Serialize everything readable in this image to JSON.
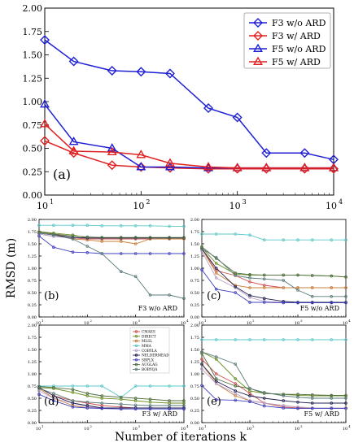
{
  "figure": {
    "ylabel": "RMSD (m)",
    "xlabel": "Number of iterations k"
  },
  "chart_data": [
    {
      "type": "line",
      "panel_label": "(a)",
      "xscale": "log",
      "xlim": [
        10,
        10000
      ],
      "ylim": [
        0,
        2.0
      ],
      "xticks": [
        10,
        100,
        1000,
        10000
      ],
      "xtick_labels": [
        "10",
        "10",
        "10",
        "10"
      ],
      "xtick_exponents": [
        "1",
        "2",
        "3",
        "4"
      ],
      "yticks": [
        "0.00",
        "0.25",
        "0.50",
        "0.75",
        "1.00",
        "1.25",
        "1.50",
        "1.75",
        "2.00"
      ],
      "legend_position": "top-right",
      "series": [
        {
          "name": "F3 w/o ARD",
          "color": "#1f1fd6",
          "marker": "diamond",
          "x": [
            10,
            20,
            50,
            100,
            200,
            500,
            1000,
            2000,
            5000,
            10000
          ],
          "y": [
            1.66,
            1.43,
            1.33,
            1.32,
            1.3,
            0.93,
            0.83,
            0.45,
            0.45,
            0.38
          ]
        },
        {
          "name": "F3 w/ ARD",
          "color": "#e02020",
          "marker": "diamond",
          "x": [
            10,
            20,
            50,
            100,
            200,
            500,
            1000,
            2000,
            5000,
            10000
          ],
          "y": [
            0.58,
            0.45,
            0.32,
            0.3,
            0.29,
            0.28,
            0.28,
            0.28,
            0.28,
            0.28
          ]
        },
        {
          "name": "F5 w/o ARD",
          "color": "#1f1fd6",
          "marker": "triangle",
          "x": [
            10,
            20,
            50,
            100,
            200,
            500,
            1000,
            2000,
            5000,
            10000
          ],
          "y": [
            0.97,
            0.57,
            0.5,
            0.3,
            0.3,
            0.29,
            0.29,
            0.29,
            0.29,
            0.29
          ]
        },
        {
          "name": "F5 w/ ARD",
          "color": "#e02020",
          "marker": "triangle",
          "x": [
            10,
            20,
            50,
            100,
            200,
            500,
            1000,
            2000,
            5000,
            10000
          ],
          "y": [
            0.76,
            0.47,
            0.46,
            0.43,
            0.34,
            0.3,
            0.29,
            0.29,
            0.29,
            0.29
          ]
        }
      ]
    },
    {
      "type": "line",
      "panel_label": "(b)",
      "caption": "F3 w/o ARD",
      "xscale": "log",
      "xlim": [
        10,
        10000
      ],
      "ylim": [
        0,
        2.0
      ],
      "x": [
        10,
        20,
        50,
        100,
        200,
        500,
        1000,
        2000,
        5000,
        10000
      ],
      "series": [
        {
          "name": "CMAES",
          "color": "#d05050",
          "y": [
            1.75,
            1.7,
            1.62,
            1.6,
            1.6,
            1.6,
            1.6,
            1.6,
            1.6,
            1.6
          ]
        },
        {
          "name": "DIRECT",
          "color": "#6b8e23",
          "y": [
            1.75,
            1.72,
            1.68,
            1.62,
            1.62,
            1.62,
            1.62,
            1.62,
            1.62,
            1.62
          ]
        },
        {
          "name": "MLSL",
          "color": "#c97f3a",
          "y": [
            1.72,
            1.68,
            1.6,
            1.58,
            1.55,
            1.55,
            1.5,
            1.6,
            1.6,
            1.6
          ]
        },
        {
          "name": "MMA",
          "color": "#5ec8c8",
          "y": [
            1.88,
            1.88,
            1.88,
            1.88,
            1.87,
            1.87,
            1.87,
            1.87,
            1.86,
            1.86
          ]
        },
        {
          "name": "COBYLA",
          "color": "#b8a0c8",
          "y": [
            1.7,
            1.65,
            1.62,
            1.62,
            1.62,
            1.62,
            1.62,
            1.62,
            1.62,
            1.62
          ]
        },
        {
          "name": "NELDERMEAD",
          "color": "#202050",
          "y": [
            1.72,
            1.68,
            1.63,
            1.62,
            1.62,
            1.62,
            1.62,
            1.62,
            1.62,
            1.62
          ]
        },
        {
          "name": "SBPLX",
          "color": "#4040c0",
          "y": [
            1.66,
            1.43,
            1.33,
            1.32,
            1.3,
            1.3,
            1.3,
            1.3,
            1.3,
            1.3
          ]
        },
        {
          "name": "AUGLAG",
          "color": "#506e40",
          "y": [
            1.74,
            1.7,
            1.66,
            1.64,
            1.63,
            1.63,
            1.63,
            1.63,
            1.63,
            1.63
          ]
        },
        {
          "name": "BOBYQA",
          "color": "#5a7a7a",
          "y": [
            1.72,
            1.68,
            1.6,
            1.45,
            1.3,
            0.93,
            0.83,
            0.45,
            0.45,
            0.38
          ]
        }
      ]
    },
    {
      "type": "line",
      "panel_label": "(c)",
      "caption": "F5 w/o ARD",
      "xscale": "log",
      "xlim": [
        10,
        10000
      ],
      "ylim": [
        0,
        2.0
      ],
      "x": [
        10,
        20,
        50,
        100,
        200,
        500,
        1000,
        2000,
        5000,
        10000
      ],
      "series": [
        {
          "name": "CMAES",
          "color": "#d05050",
          "y": [
            1.4,
            0.95,
            0.85,
            0.72,
            0.65,
            0.6,
            0.6,
            0.6,
            0.6,
            0.6
          ]
        },
        {
          "name": "DIRECT",
          "color": "#6b8e23",
          "y": [
            1.42,
            1.1,
            0.88,
            0.86,
            0.86,
            0.86,
            0.86,
            0.85,
            0.84,
            0.82
          ]
        },
        {
          "name": "MLSL",
          "color": "#c97f3a",
          "y": [
            1.4,
            0.9,
            0.65,
            0.6,
            0.6,
            0.6,
            0.6,
            0.6,
            0.6,
            0.6
          ]
        },
        {
          "name": "MMA",
          "color": "#5ec8c8",
          "y": [
            1.7,
            1.7,
            1.7,
            1.68,
            1.58,
            1.58,
            1.58,
            1.58,
            1.58,
            1.58
          ]
        },
        {
          "name": "COBYLA",
          "color": "#b8a0c8",
          "y": [
            1.35,
            0.8,
            0.6,
            0.4,
            0.32,
            0.3,
            0.3,
            0.3,
            0.3,
            0.3
          ]
        },
        {
          "name": "NELDERMEAD",
          "color": "#202050",
          "y": [
            1.4,
            1.0,
            0.62,
            0.44,
            0.38,
            0.32,
            0.3,
            0.3,
            0.3,
            0.3
          ]
        },
        {
          "name": "SBPLX",
          "color": "#4040c0",
          "y": [
            0.97,
            0.57,
            0.5,
            0.3,
            0.3,
            0.29,
            0.29,
            0.29,
            0.29,
            0.29
          ]
        },
        {
          "name": "AUGLAG",
          "color": "#506e40",
          "y": [
            1.44,
            1.2,
            0.9,
            0.87,
            0.86,
            0.86,
            0.86,
            0.85,
            0.84,
            0.82
          ]
        },
        {
          "name": "BOBYQA",
          "color": "#5a7a7a",
          "y": [
            1.4,
            1.22,
            0.85,
            0.8,
            0.78,
            0.75,
            0.55,
            0.42,
            0.42,
            0.42
          ]
        }
      ]
    },
    {
      "type": "line",
      "panel_label": "(d)",
      "caption": "F3 w/ ARD",
      "xscale": "log",
      "xlim": [
        10,
        10000
      ],
      "ylim": [
        0,
        2.0
      ],
      "x": [
        10,
        20,
        50,
        100,
        200,
        500,
        1000,
        2000,
        5000,
        10000
      ],
      "legend_position": "top-center",
      "series": [
        {
          "name": "CMAES",
          "color": "#d05050",
          "y": [
            0.72,
            0.55,
            0.45,
            0.4,
            0.35,
            0.32,
            0.3,
            0.3,
            0.3,
            0.3
          ]
        },
        {
          "name": "DIRECT",
          "color": "#6b8e23",
          "y": [
            0.72,
            0.7,
            0.62,
            0.55,
            0.5,
            0.48,
            0.45,
            0.42,
            0.4,
            0.4
          ]
        },
        {
          "name": "MLSL",
          "color": "#c97f3a",
          "y": [
            0.7,
            0.5,
            0.35,
            0.3,
            0.3,
            0.3,
            0.3,
            0.3,
            0.3,
            0.3
          ]
        },
        {
          "name": "MMA",
          "color": "#5ec8c8",
          "y": [
            0.75,
            0.75,
            0.75,
            0.75,
            0.75,
            0.52,
            0.75,
            0.75,
            0.75,
            0.75
          ]
        },
        {
          "name": "COBYLA",
          "color": "#b8a0c8",
          "y": [
            0.65,
            0.5,
            0.4,
            0.32,
            0.3,
            0.3,
            0.3,
            0.3,
            0.3,
            0.3
          ]
        },
        {
          "name": "NELDERMEAD",
          "color": "#202050",
          "y": [
            0.72,
            0.55,
            0.4,
            0.35,
            0.3,
            0.3,
            0.3,
            0.3,
            0.3,
            0.3
          ]
        },
        {
          "name": "SBPLX",
          "color": "#4040c0",
          "y": [
            0.58,
            0.45,
            0.32,
            0.3,
            0.29,
            0.28,
            0.28,
            0.28,
            0.28,
            0.28
          ]
        },
        {
          "name": "AUGLAG",
          "color": "#506e40",
          "y": [
            0.74,
            0.72,
            0.68,
            0.6,
            0.55,
            0.52,
            0.5,
            0.48,
            0.45,
            0.45
          ]
        },
        {
          "name": "BOBYQA",
          "color": "#5a7a7a",
          "y": [
            0.7,
            0.6,
            0.45,
            0.42,
            0.4,
            0.38,
            0.36,
            0.35,
            0.35,
            0.35
          ]
        }
      ]
    },
    {
      "type": "line",
      "panel_label": "(e)",
      "caption": "F5 w/ ARD",
      "xscale": "log",
      "xlim": [
        10,
        10000
      ],
      "ylim": [
        0,
        2.0
      ],
      "x": [
        10,
        20,
        50,
        100,
        200,
        500,
        1000,
        2000,
        5000,
        10000
      ],
      "series": [
        {
          "name": "CMAES",
          "color": "#d05050",
          "y": [
            1.3,
            1.0,
            0.8,
            0.6,
            0.4,
            0.32,
            0.3,
            0.3,
            0.3,
            0.3
          ]
        },
        {
          "name": "DIRECT",
          "color": "#6b8e23",
          "y": [
            1.45,
            1.3,
            0.9,
            0.65,
            0.6,
            0.58,
            0.56,
            0.55,
            0.55,
            0.55
          ]
        },
        {
          "name": "MLSL",
          "color": "#c97f3a",
          "y": [
            1.2,
            0.8,
            0.55,
            0.45,
            0.4,
            0.35,
            0.32,
            0.3,
            0.3,
            0.3
          ]
        },
        {
          "name": "MMA",
          "color": "#5ec8c8",
          "y": [
            1.7,
            1.7,
            1.7,
            1.7,
            1.7,
            1.7,
            1.7,
            1.7,
            1.7,
            1.7
          ]
        },
        {
          "name": "COBYLA",
          "color": "#b8a0c8",
          "y": [
            1.1,
            0.8,
            0.6,
            0.45,
            0.4,
            0.35,
            0.32,
            0.3,
            0.3,
            0.3
          ]
        },
        {
          "name": "NELDERMEAD",
          "color": "#202050",
          "y": [
            1.2,
            0.85,
            0.65,
            0.55,
            0.5,
            0.45,
            0.42,
            0.4,
            0.4,
            0.4
          ]
        },
        {
          "name": "SBPLX",
          "color": "#4040c0",
          "y": [
            0.76,
            0.47,
            0.46,
            0.43,
            0.34,
            0.3,
            0.29,
            0.29,
            0.29,
            0.29
          ]
        },
        {
          "name": "AUGLAG",
          "color": "#506e40",
          "y": [
            1.42,
            0.9,
            0.75,
            0.7,
            0.6,
            0.58,
            0.58,
            0.57,
            0.56,
            0.56
          ]
        },
        {
          "name": "BOBYQA",
          "color": "#5a7a7a",
          "y": [
            1.45,
            1.35,
            1.2,
            0.7,
            0.62,
            0.55,
            0.52,
            0.5,
            0.5,
            0.5
          ]
        }
      ]
    }
  ]
}
